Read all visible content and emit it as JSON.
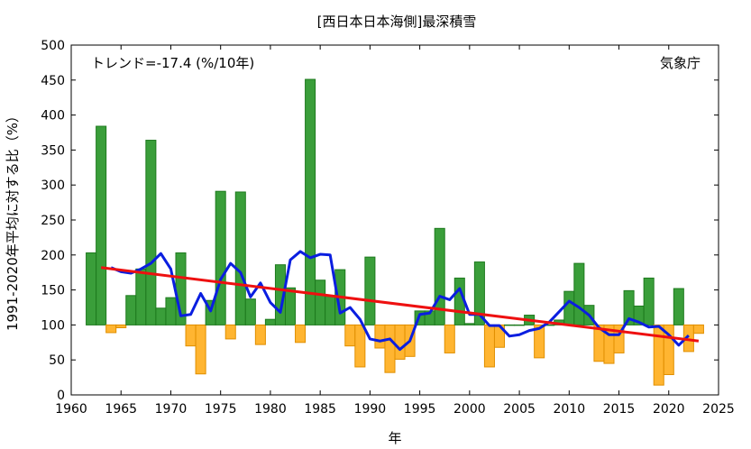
{
  "chart_data": {
    "type": "bar",
    "title": "[西日本日本海側]最深積雪",
    "xlabel": "年",
    "ylabel": "1991-2020年平均に対する比（%）",
    "trend_text": "トレンド=-17.4 (%/10年)",
    "source_text": "気象庁",
    "xlim": [
      1960,
      2025
    ],
    "ylim": [
      0,
      500
    ],
    "baseline": 100,
    "grid": false,
    "x_ticks": [
      "1960",
      "1965",
      "1970",
      "1975",
      "1980",
      "1985",
      "1990",
      "1995",
      "2000",
      "2005",
      "2010",
      "2015",
      "2020",
      "2025"
    ],
    "y_ticks": [
      "0",
      "50",
      "100",
      "150",
      "200",
      "250",
      "300",
      "350",
      "400",
      "450",
      "500"
    ],
    "colors": {
      "above": "#3a9e3a",
      "above_edge": "#1e7a1e",
      "below": "#ffb531",
      "below_edge": "#e08f00",
      "moving_average": "#0a1ee0",
      "trend": "#ee1010"
    },
    "years": [
      1962,
      1963,
      1964,
      1965,
      1966,
      1967,
      1968,
      1969,
      1970,
      1971,
      1972,
      1973,
      1974,
      1975,
      1976,
      1977,
      1978,
      1979,
      1980,
      1981,
      1982,
      1983,
      1984,
      1985,
      1986,
      1987,
      1988,
      1989,
      1990,
      1991,
      1992,
      1993,
      1994,
      1995,
      1996,
      1997,
      1998,
      1999,
      2000,
      2001,
      2002,
      2003,
      2004,
      2005,
      2006,
      2007,
      2008,
      2009,
      2010,
      2011,
      2012,
      2013,
      2014,
      2015,
      2016,
      2017,
      2018,
      2019,
      2020,
      2021,
      2022,
      2023
    ],
    "values": [
      203,
      384,
      89,
      96,
      142,
      180,
      364,
      124,
      139,
      203,
      70,
      30,
      135,
      291,
      80,
      290,
      137,
      72,
      108,
      186,
      153,
      75,
      451,
      164,
      141,
      179,
      70,
      40,
      197,
      67,
      32,
      51,
      55,
      120,
      120,
      238,
      60,
      167,
      102,
      190,
      40,
      68,
      100,
      100,
      114,
      53,
      100,
      107,
      148,
      188,
      128,
      48,
      45,
      60,
      149,
      127,
      167,
      14,
      29,
      152,
      62,
      88
    ],
    "moving_average": {
      "years": [
        1964,
        1965,
        1966,
        1967,
        1968,
        1969,
        1970,
        1971,
        1972,
        1973,
        1974,
        1975,
        1976,
        1977,
        1978,
        1979,
        1980,
        1981,
        1982,
        1983,
        1984,
        1985,
        1986,
        1987,
        1988,
        1989,
        1990,
        1991,
        1992,
        1993,
        1994,
        1995,
        1996,
        1997,
        1998,
        1999,
        2000,
        2001,
        2002,
        2003,
        2004,
        2005,
        2006,
        2007,
        2008,
        2009,
        2010,
        2011,
        2012,
        2013,
        2014,
        2015,
        2016,
        2017,
        2018,
        2019,
        2020,
        2021,
        2022
      ],
      "values": [
        182,
        176,
        174,
        180,
        188,
        202,
        180,
        113,
        115,
        145,
        120,
        165,
        188,
        175,
        140,
        160,
        132,
        118,
        193,
        205,
        196,
        201,
        200,
        117,
        125,
        108,
        80,
        77,
        80,
        65,
        77,
        115,
        117,
        141,
        136,
        152,
        115,
        115,
        99,
        99,
        84,
        86,
        92,
        95,
        104,
        119,
        134,
        125,
        114,
        96,
        86,
        86,
        109,
        104,
        97,
        98,
        86,
        71,
        85
      ]
    },
    "trend": {
      "x": [
        1963,
        2023
      ],
      "y": [
        182,
        77
      ]
    }
  }
}
